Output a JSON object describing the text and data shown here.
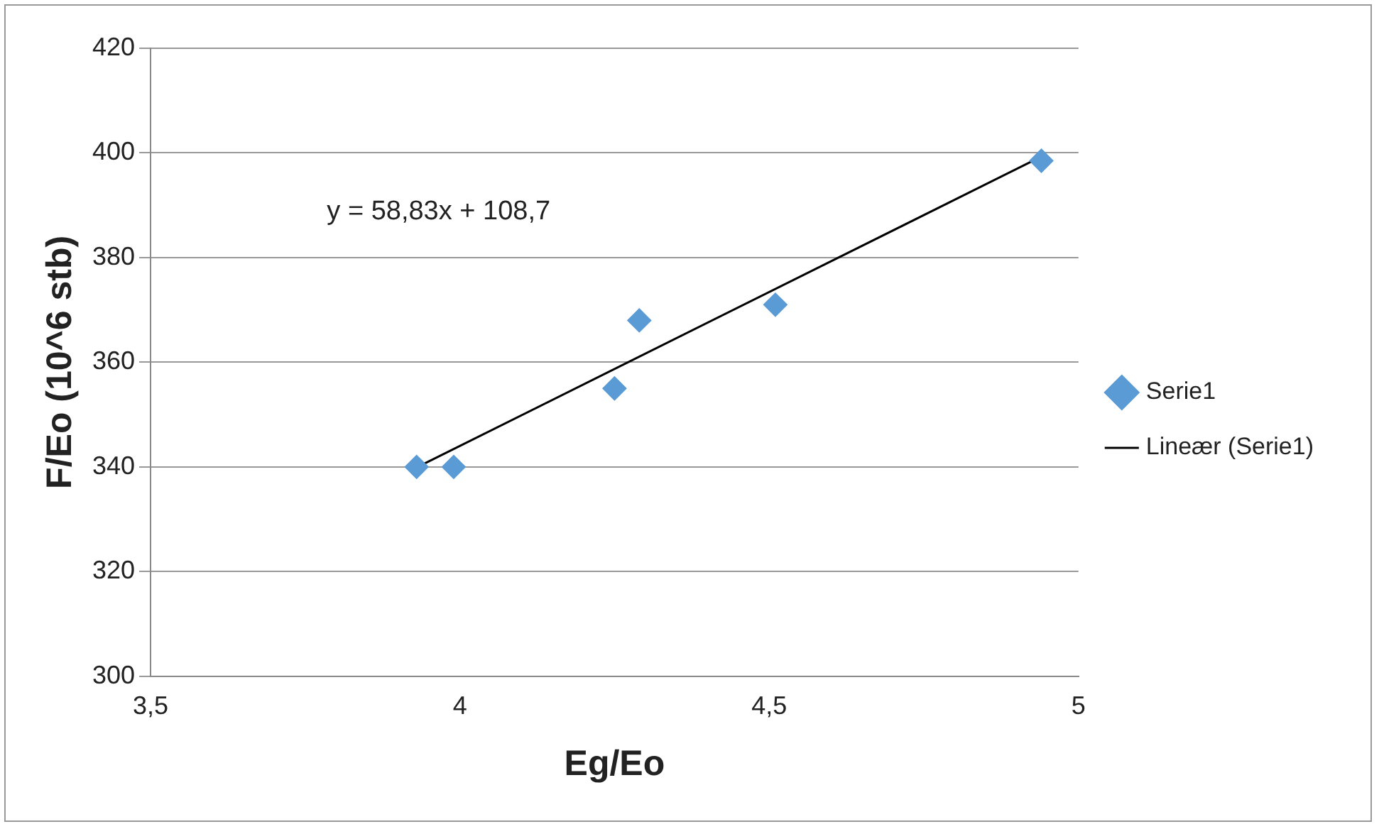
{
  "chart_data": {
    "type": "scatter",
    "xlabel": "Eg/Eo",
    "ylabel": "F/Eo (10^6 stb)",
    "annotations": [
      "y = 58,83x + 108,7"
    ],
    "series": [
      {
        "name": "Serie1",
        "color": "#5b9bd5",
        "marker": "diamond",
        "x": [
          3.93,
          3.99,
          4.25,
          4.29,
          4.51,
          4.94
        ],
        "values": [
          340,
          340,
          355,
          368,
          371,
          398.5
        ]
      },
      {
        "name": "Lineær (Serie1)",
        "type": "line",
        "color": "#000000",
        "marker": "none",
        "line_style": "solid",
        "x": [
          3.93,
          4.94
        ],
        "values": [
          339.9,
          399.3
        ]
      }
    ],
    "xlim": [
      3.5,
      5
    ],
    "xticks": [
      {
        "value": 3.5,
        "label": "3,5"
      },
      4,
      {
        "value": 4.5,
        "label": "4,5"
      },
      5
    ],
    "ylim": [
      300,
      420
    ],
    "yticks": [
      300,
      320,
      340,
      360,
      380,
      400,
      420
    ],
    "grid": "y",
    "legend": "right"
  }
}
